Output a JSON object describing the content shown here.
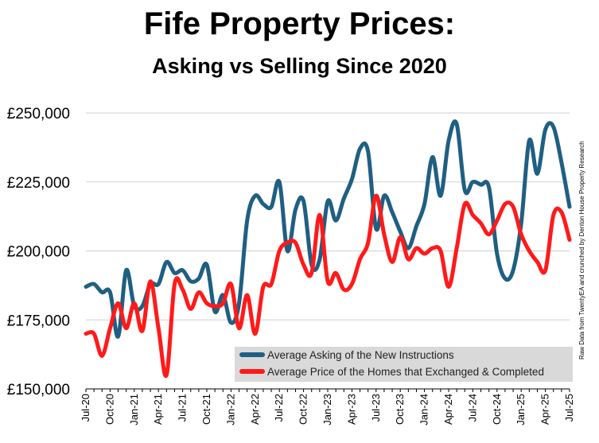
{
  "chart_data": {
    "type": "line",
    "title": "Fife Property Prices:",
    "subtitle": "Asking vs Selling Since 2020",
    "source_note": "Raw Data from TwentyEA and crunched by Denton House Property Research",
    "ylim": [
      150000,
      250000
    ],
    "yticks": [
      "£150,000",
      "£175,000",
      "£200,000",
      "£225,000",
      "£250,000"
    ],
    "ytick_values": [
      150000,
      175000,
      200000,
      225000,
      250000
    ],
    "grid": true,
    "legend_position": "bottom-right",
    "x_tick_labels": [
      "Jul-20",
      "Oct-20",
      "Jan-21",
      "Apr-21",
      "Jul-21",
      "Oct-21",
      "Jan-22",
      "Apr-22",
      "Jul-22",
      "Oct-22",
      "Jan-23",
      "Apr-23",
      "Jul-23",
      "Oct-23",
      "Jan-24",
      "Apr-24",
      "Jul-24",
      "Oct-24",
      "Jan-25",
      "Apr-25",
      "Jul-25"
    ],
    "x": [
      "Jul-20",
      "Aug-20",
      "Sep-20",
      "Oct-20",
      "Nov-20",
      "Dec-20",
      "Jan-21",
      "Feb-21",
      "Mar-21",
      "Apr-21",
      "May-21",
      "Jun-21",
      "Jul-21",
      "Aug-21",
      "Sep-21",
      "Oct-21",
      "Nov-21",
      "Dec-21",
      "Jan-22",
      "Feb-22",
      "Mar-22",
      "Apr-22",
      "May-22",
      "Jun-22",
      "Jul-22",
      "Aug-22",
      "Sep-22",
      "Oct-22",
      "Nov-22",
      "Dec-22",
      "Jan-23",
      "Feb-23",
      "Mar-23",
      "Apr-23",
      "May-23",
      "Jun-23",
      "Jul-23",
      "Aug-23",
      "Sep-23",
      "Oct-23",
      "Nov-23",
      "Dec-23",
      "Jan-24",
      "Feb-24",
      "Mar-24",
      "Apr-24",
      "May-24",
      "Jun-24",
      "Jul-24",
      "Aug-24",
      "Sep-24",
      "Oct-24",
      "Nov-24",
      "Dec-24",
      "Jan-25",
      "Feb-25",
      "Mar-25",
      "Apr-25",
      "May-25",
      "Jun-25",
      "Jul-25"
    ],
    "series": [
      {
        "name": "Average Asking of the New Instructions",
        "color": "#1f5f82",
        "values": [
          187000,
          188000,
          185000,
          185000,
          169000,
          193000,
          180000,
          180000,
          188000,
          188000,
          196000,
          192000,
          193000,
          189000,
          190000,
          195000,
          178000,
          184000,
          174000,
          181000,
          211000,
          220000,
          217000,
          216000,
          225000,
          200000,
          215000,
          218000,
          195000,
          197000,
          218000,
          211000,
          219000,
          226000,
          237000,
          236000,
          208000,
          220000,
          214000,
          207000,
          201000,
          209000,
          217000,
          234000,
          220000,
          240000,
          246000,
          222000,
          225000,
          224000,
          223000,
          199000,
          190000,
          193000,
          210000,
          240000,
          228000,
          244000,
          245000,
          232000,
          216000
        ]
      },
      {
        "name": "Average Price of the Homes that Exchanged & Completed",
        "color": "#ff1a1a",
        "values": [
          170000,
          170000,
          162000,
          172000,
          181000,
          172000,
          181000,
          171000,
          189000,
          172000,
          155000,
          188000,
          186000,
          179000,
          185000,
          181000,
          180000,
          181000,
          188000,
          172000,
          184000,
          170000,
          187000,
          188000,
          200000,
          203000,
          203000,
          195000,
          192000,
          213000,
          189000,
          192000,
          186000,
          188000,
          197000,
          203000,
          220000,
          206000,
          196000,
          205000,
          197000,
          201000,
          199000,
          201000,
          200000,
          187000,
          201000,
          217000,
          213000,
          210000,
          206000,
          211000,
          217000,
          216000,
          206000,
          200000,
          196000,
          193000,
          213000,
          214000,
          204000
        ]
      }
    ]
  }
}
